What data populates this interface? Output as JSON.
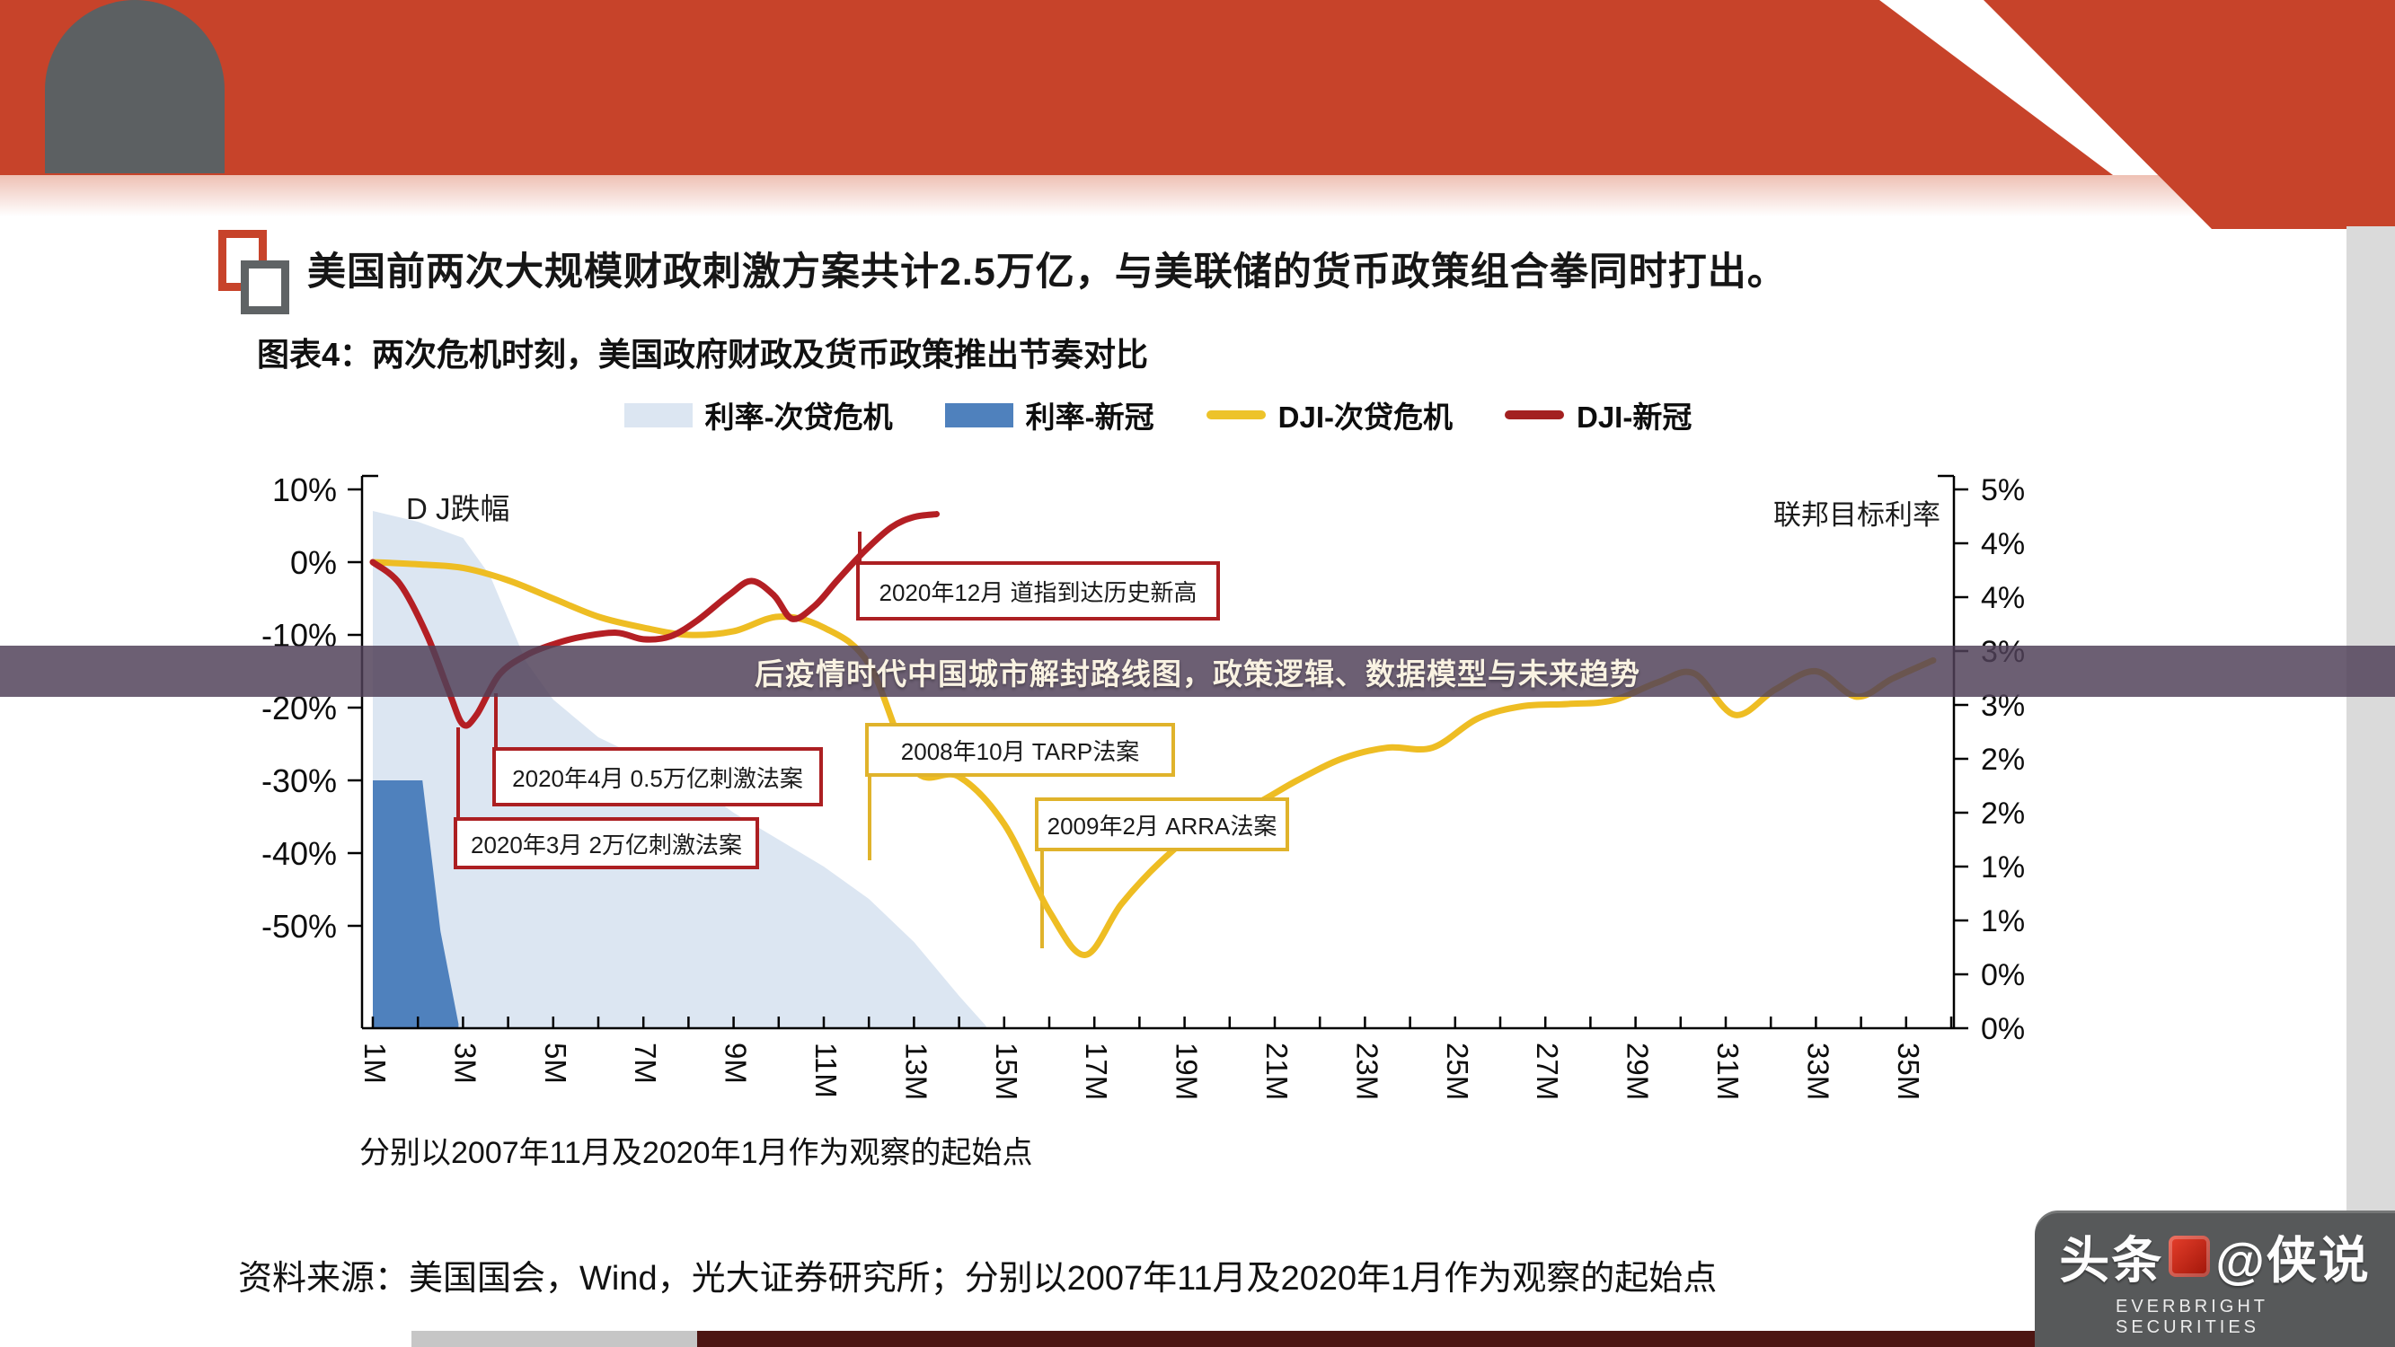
{
  "header": {
    "bullet_title": "美国前两次大规模财政刺激方案共计2.5万亿，与美联储的货币政策组合拳同时打出。"
  },
  "overlay": {
    "banner_text": "后疫情时代中国城市解封路线图，政策逻辑、数据模型与未来趋势"
  },
  "footer": {
    "source_line": "资料来源：美国国会，Wind，光大证券研究所；分别以2007年11月及2020年1月作为观察的起始点"
  },
  "watermark": {
    "brand_left": "头条",
    "brand_right": "@侠说",
    "subtitle": "EVERBRIGHT SECURITIES"
  },
  "chart_data": {
    "type": "combo",
    "title": "图表4：两次危机时刻，美国政府财政及货币政策推出节奏对比",
    "footnote": "分别以2007年11月及2020年1月作为观察的起始点",
    "x_axis": {
      "tick_labels": [
        "1M",
        "3M",
        "5M",
        "7M",
        "9M",
        "11M",
        "13M",
        "15M",
        "17M",
        "19M",
        "21M",
        "23M",
        "25M",
        "27M",
        "29M",
        "31M",
        "33M",
        "35M"
      ],
      "minor_tick_every_months": 1,
      "range_months": [
        1,
        36
      ]
    },
    "left_axis": {
      "label": "D J跌幅",
      "tick_labels": [
        "10%",
        "0%",
        "-10%",
        "-20%",
        "-30%",
        "-40%",
        "-50%"
      ],
      "range_pct": [
        10,
        -50
      ]
    },
    "right_axis": {
      "label": "联邦目标利率",
      "tick_labels": [
        "5%",
        "4%",
        "4%",
        "3%",
        "3%",
        "2%",
        "2%",
        "1%",
        "1%",
        "0%",
        "0%"
      ],
      "range_pct": [
        5,
        0
      ]
    },
    "legend": [
      {
        "label": "利率-次贷危机",
        "swatch": "area",
        "color": "#dce6f2"
      },
      {
        "label": "利率-新冠",
        "swatch": "area",
        "color": "#4f81bd"
      },
      {
        "label": "DJI-次贷危机",
        "swatch": "line",
        "color": "#edc32a"
      },
      {
        "label": "DJI-新冠",
        "swatch": "line",
        "color": "#a32020"
      }
    ],
    "series": [
      {
        "name": "利率-次贷危机",
        "type": "area",
        "axis": "right",
        "color": "#dce6f2",
        "x": [
          1,
          2,
          3,
          3.6,
          4.4,
          5,
          6,
          7,
          8,
          9,
          10,
          11,
          12,
          13,
          14,
          14.6
        ],
        "values": [
          4.8,
          4.7,
          4.55,
          4.2,
          3.4,
          3.05,
          2.7,
          2.5,
          2.3,
          2.0,
          1.75,
          1.5,
          1.2,
          0.8,
          0.3,
          0.02
        ]
      },
      {
        "name": "利率-新冠",
        "type": "area",
        "axis": "right",
        "color": "#4f81bd",
        "x": [
          1,
          2.1,
          2.5,
          2.9
        ],
        "values": [
          2.3,
          2.3,
          0.9,
          0.04
        ]
      },
      {
        "name": "DJI-次贷危机",
        "type": "line",
        "axis": "left",
        "color": "#eebd23",
        "x": [
          1,
          2,
          3,
          4,
          5,
          6,
          7,
          8,
          9,
          10,
          11,
          12,
          13,
          14,
          15,
          16,
          16.8,
          17.6,
          18.5,
          19.5,
          20.5,
          21.5,
          22.5,
          23.5,
          24.5,
          25.5,
          26.5,
          27.5,
          28.5,
          29.5,
          30.3,
          31.2,
          32.1,
          33,
          33.9,
          34.7,
          35.6
        ],
        "values": [
          0,
          -0.3,
          -0.8,
          -2.5,
          -5,
          -7.5,
          -9,
          -10,
          -9.5,
          -7.5,
          -9,
          -14,
          -28.5,
          -29.5,
          -36,
          -48,
          -54,
          -47,
          -41,
          -36,
          -33.5,
          -30,
          -27,
          -25.5,
          -25.5,
          -21.5,
          -19.8,
          -19.5,
          -19,
          -16.5,
          -15.3,
          -21,
          -17.5,
          -15,
          -18.5,
          -16,
          -13.5
        ]
      },
      {
        "name": "DJI-新冠",
        "type": "line",
        "axis": "left",
        "color": "#b41f24",
        "x": [
          1,
          1.6,
          2.2,
          2.7,
          3,
          3.3,
          3.8,
          4.4,
          5,
          5.6,
          6.4,
          7,
          7.6,
          8.2,
          8.9,
          9.4,
          9.9,
          10.3,
          10.8,
          11.3,
          11.9,
          12.5,
          13,
          13.5
        ],
        "values": [
          0,
          -3,
          -10,
          -18,
          -22.3,
          -21,
          -15.5,
          -12.8,
          -11.3,
          -10.3,
          -9.7,
          -10.6,
          -10.2,
          -8,
          -4.5,
          -2.6,
          -4.6,
          -7.8,
          -6,
          -2.5,
          1.5,
          4.8,
          6.2,
          6.6
        ]
      }
    ],
    "annotations": [
      {
        "text": "2020年12月  道指到达历史新高",
        "color": "#ac1f22"
      },
      {
        "text": "2008年10月  TARP法案",
        "color": "#e0b32b"
      },
      {
        "text": "2020年4月  0.5万亿刺激法案",
        "color": "#ac1f22"
      },
      {
        "text": "2009年2月  ARRA法案",
        "color": "#e0b32b"
      },
      {
        "text": "2020年3月  2万亿刺激法案",
        "color": "#ac1f22"
      }
    ]
  }
}
